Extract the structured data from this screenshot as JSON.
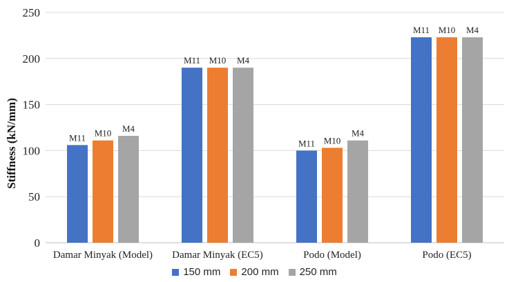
{
  "chart_data": {
    "type": "bar",
    "title": "",
    "xlabel": "",
    "ylabel": "Stiffness (kN/mm)",
    "ylim": [
      0,
      250
    ],
    "yticks": [
      0,
      50,
      100,
      150,
      200,
      250
    ],
    "grid": true,
    "legend_position": "bottom",
    "categories": [
      "Damar Minyak (Model)",
      "Damar Minyak (EC5)",
      "Podo (Model)",
      "Podo (EC5)"
    ],
    "series": [
      {
        "name": "150 mm",
        "color": "#4472C4",
        "values": [
          106,
          190,
          100,
          223
        ],
        "labels": [
          "M11",
          "M11",
          "M11",
          "M11"
        ]
      },
      {
        "name": "200 mm",
        "color": "#ED7D31",
        "values": [
          111,
          190,
          103,
          223
        ],
        "labels": [
          "M10",
          "M10",
          "M10",
          "M10"
        ]
      },
      {
        "name": "250 mm",
        "color": "#A5A5A5",
        "values": [
          116,
          190,
          111,
          223
        ],
        "labels": [
          "M4",
          "M4",
          "M4",
          "M4"
        ]
      }
    ]
  }
}
